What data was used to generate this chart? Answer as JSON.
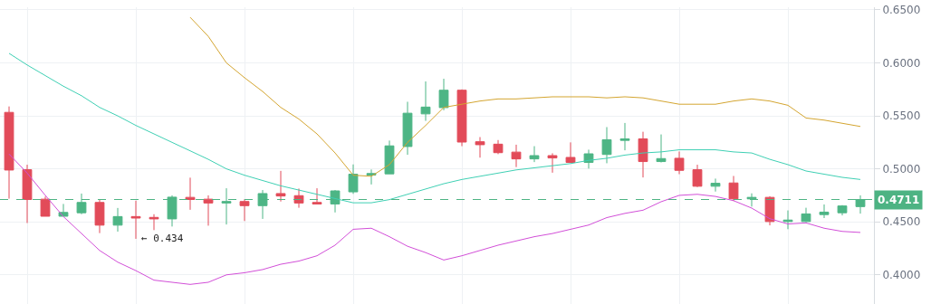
{
  "chart_data": {
    "type": "candlestick",
    "categories": [
      null,
      null,
      null,
      null,
      null,
      null,
      null,
      null,
      null,
      null,
      null,
      null,
      null,
      null,
      null,
      null,
      null,
      null,
      null,
      null,
      null,
      null,
      null,
      null,
      null,
      null,
      null,
      null,
      null,
      null,
      null,
      null,
      null,
      null,
      null,
      null,
      null,
      null,
      null,
      null,
      null,
      null,
      null,
      null,
      null,
      null,
      null,
      null
    ],
    "ohlc": [
      [
        0.5533,
        0.5589,
        0.4719,
        0.4989
      ],
      [
        0.4992,
        0.5039,
        0.4489,
        0.4711
      ],
      [
        0.4714,
        0.4739,
        0.4553,
        0.4553
      ],
      [
        0.4553,
        0.4669,
        0.4553,
        0.4589
      ],
      [
        0.4586,
        0.4767,
        0.4572,
        0.4683
      ],
      [
        0.4683,
        0.4711,
        0.4394,
        0.4469
      ],
      [
        0.4469,
        0.4631,
        0.4408,
        0.455
      ],
      [
        0.455,
        0.47,
        0.434,
        0.4536
      ],
      [
        0.4542,
        0.4572,
        0.4422,
        0.4528
      ],
      [
        0.4528,
        0.475,
        0.4456,
        0.4733
      ],
      [
        0.4731,
        0.4917,
        0.4614,
        0.4711
      ],
      [
        0.4714,
        0.475,
        0.4464,
        0.4678
      ],
      [
        0.4678,
        0.4817,
        0.4475,
        0.4692
      ],
      [
        0.4692,
        0.4714,
        0.4508,
        0.4653
      ],
      [
        0.4653,
        0.48,
        0.4528,
        0.4767
      ],
      [
        0.4767,
        0.4981,
        0.4692,
        0.4744
      ],
      [
        0.4747,
        0.4814,
        0.4633,
        0.4678
      ],
      [
        0.4683,
        0.4817,
        0.4669,
        0.4669
      ],
      [
        0.4669,
        0.48,
        0.4589,
        0.4792
      ],
      [
        0.4783,
        0.5042,
        0.4764,
        0.495
      ],
      [
        0.4942,
        0.4994,
        0.4853,
        0.4956
      ],
      [
        0.4953,
        0.5267,
        0.4953,
        0.5217
      ],
      [
        0.5211,
        0.5633,
        0.5133,
        0.5525
      ],
      [
        0.5519,
        0.5825,
        0.5453,
        0.5583
      ],
      [
        0.5578,
        0.585,
        0.5553,
        0.5742
      ],
      [
        0.5742,
        0.575,
        0.5214,
        0.5253
      ],
      [
        0.5256,
        0.53,
        0.5106,
        0.5228
      ],
      [
        0.5233,
        0.5272,
        0.5139,
        0.5153
      ],
      [
        0.5158,
        0.5228,
        0.5017,
        0.5094
      ],
      [
        0.5094,
        0.5214,
        0.5064,
        0.5125
      ],
      [
        0.5125,
        0.5147,
        0.4964,
        0.5103
      ],
      [
        0.5108,
        0.525,
        0.5061,
        0.5061
      ],
      [
        0.5061,
        0.5181,
        0.5003,
        0.5142
      ],
      [
        0.5136,
        0.5394,
        0.5053,
        0.5275
      ],
      [
        0.5269,
        0.5433,
        0.5175,
        0.5283
      ],
      [
        0.5283,
        0.535,
        0.4919,
        0.5069
      ],
      [
        0.5069,
        0.5325,
        0.5061,
        0.5097
      ],
      [
        0.51,
        0.5164,
        0.495,
        0.4986
      ],
      [
        0.4992,
        0.5039,
        0.4828,
        0.4836
      ],
      [
        0.4836,
        0.4908,
        0.4786,
        0.4864
      ],
      [
        0.4867,
        0.4933,
        0.4697,
        0.4717
      ],
      [
        0.4717,
        0.4769,
        0.4644,
        0.4731
      ],
      [
        0.4731,
        0.4742,
        0.4467,
        0.4503
      ],
      [
        0.4503,
        0.4608,
        0.4431,
        0.4517
      ],
      [
        0.4503,
        0.4633,
        0.4497,
        0.4575
      ],
      [
        0.4569,
        0.4664,
        0.4536,
        0.4592
      ],
      [
        0.4586,
        0.4658,
        0.4561,
        0.465
      ],
      [
        0.4644,
        0.475,
        0.4578,
        0.4711
      ]
    ],
    "series": [
      {
        "type": "line",
        "color": "#d4a530",
        "values": [
          null,
          null,
          null,
          null,
          null,
          null,
          null,
          null,
          null,
          null,
          0.643,
          0.625,
          0.6,
          0.586,
          0.573,
          0.558,
          0.547,
          0.533,
          0.515,
          0.494,
          0.493,
          0.504,
          0.525,
          0.541,
          0.558,
          0.561,
          0.564,
          0.566,
          0.566,
          0.567,
          0.568,
          0.568,
          0.568,
          0.567,
          0.568,
          0.567,
          0.564,
          0.561,
          0.561,
          0.561,
          0.564,
          0.566,
          0.564,
          0.56,
          0.548,
          0.546,
          0.543,
          0.54
        ]
      },
      {
        "type": "line",
        "color": "#3fd0b4",
        "values": [
          0.609,
          0.598,
          0.588,
          0.578,
          0.569,
          0.558,
          0.55,
          0.541,
          0.533,
          0.525,
          0.517,
          0.509,
          0.5,
          0.494,
          0.489,
          0.484,
          0.48,
          0.476,
          0.472,
          0.468,
          0.468,
          0.471,
          0.476,
          0.481,
          0.486,
          0.49,
          0.493,
          0.496,
          0.499,
          0.501,
          0.503,
          0.505,
          0.508,
          0.51,
          0.513,
          0.515,
          0.516,
          0.518,
          0.518,
          0.518,
          0.516,
          0.515,
          0.509,
          0.504,
          0.498,
          0.495,
          0.492,
          0.49
        ]
      },
      {
        "type": "line",
        "color": "#d24fd8",
        "values": [
          0.514,
          0.496,
          0.475,
          0.455,
          0.439,
          0.423,
          0.412,
          0.404,
          0.395,
          0.393,
          0.391,
          0.393,
          0.4,
          0.402,
          0.405,
          0.41,
          0.413,
          0.418,
          0.428,
          0.443,
          0.444,
          0.436,
          0.427,
          0.421,
          0.414,
          0.418,
          0.423,
          0.428,
          0.432,
          0.436,
          0.439,
          0.443,
          0.447,
          0.454,
          0.458,
          0.461,
          0.469,
          0.475,
          0.476,
          0.474,
          0.47,
          0.463,
          0.453,
          0.448,
          0.449,
          0.444,
          0.441,
          0.44
        ]
      }
    ],
    "ylim": [
      0.3725,
      0.6525
    ],
    "yticks": [
      {
        "value": 0.4,
        "label": "0.4000"
      },
      {
        "value": 0.45,
        "label": "0.4500"
      },
      {
        "value": 0.5,
        "label": "0.5000"
      },
      {
        "value": 0.55,
        "label": "0.5500"
      },
      {
        "value": 0.6,
        "label": "0.6000"
      },
      {
        "value": 0.65,
        "label": "0.6500"
      }
    ],
    "tick_labels": "y",
    "grid": true,
    "ref_lines": [
      {
        "axis": "y",
        "value": 0.4711,
        "label": "0.4711",
        "color": "#4db383",
        "line_style": "dashed"
      }
    ],
    "annotations": [
      "← 0.434"
    ]
  }
}
